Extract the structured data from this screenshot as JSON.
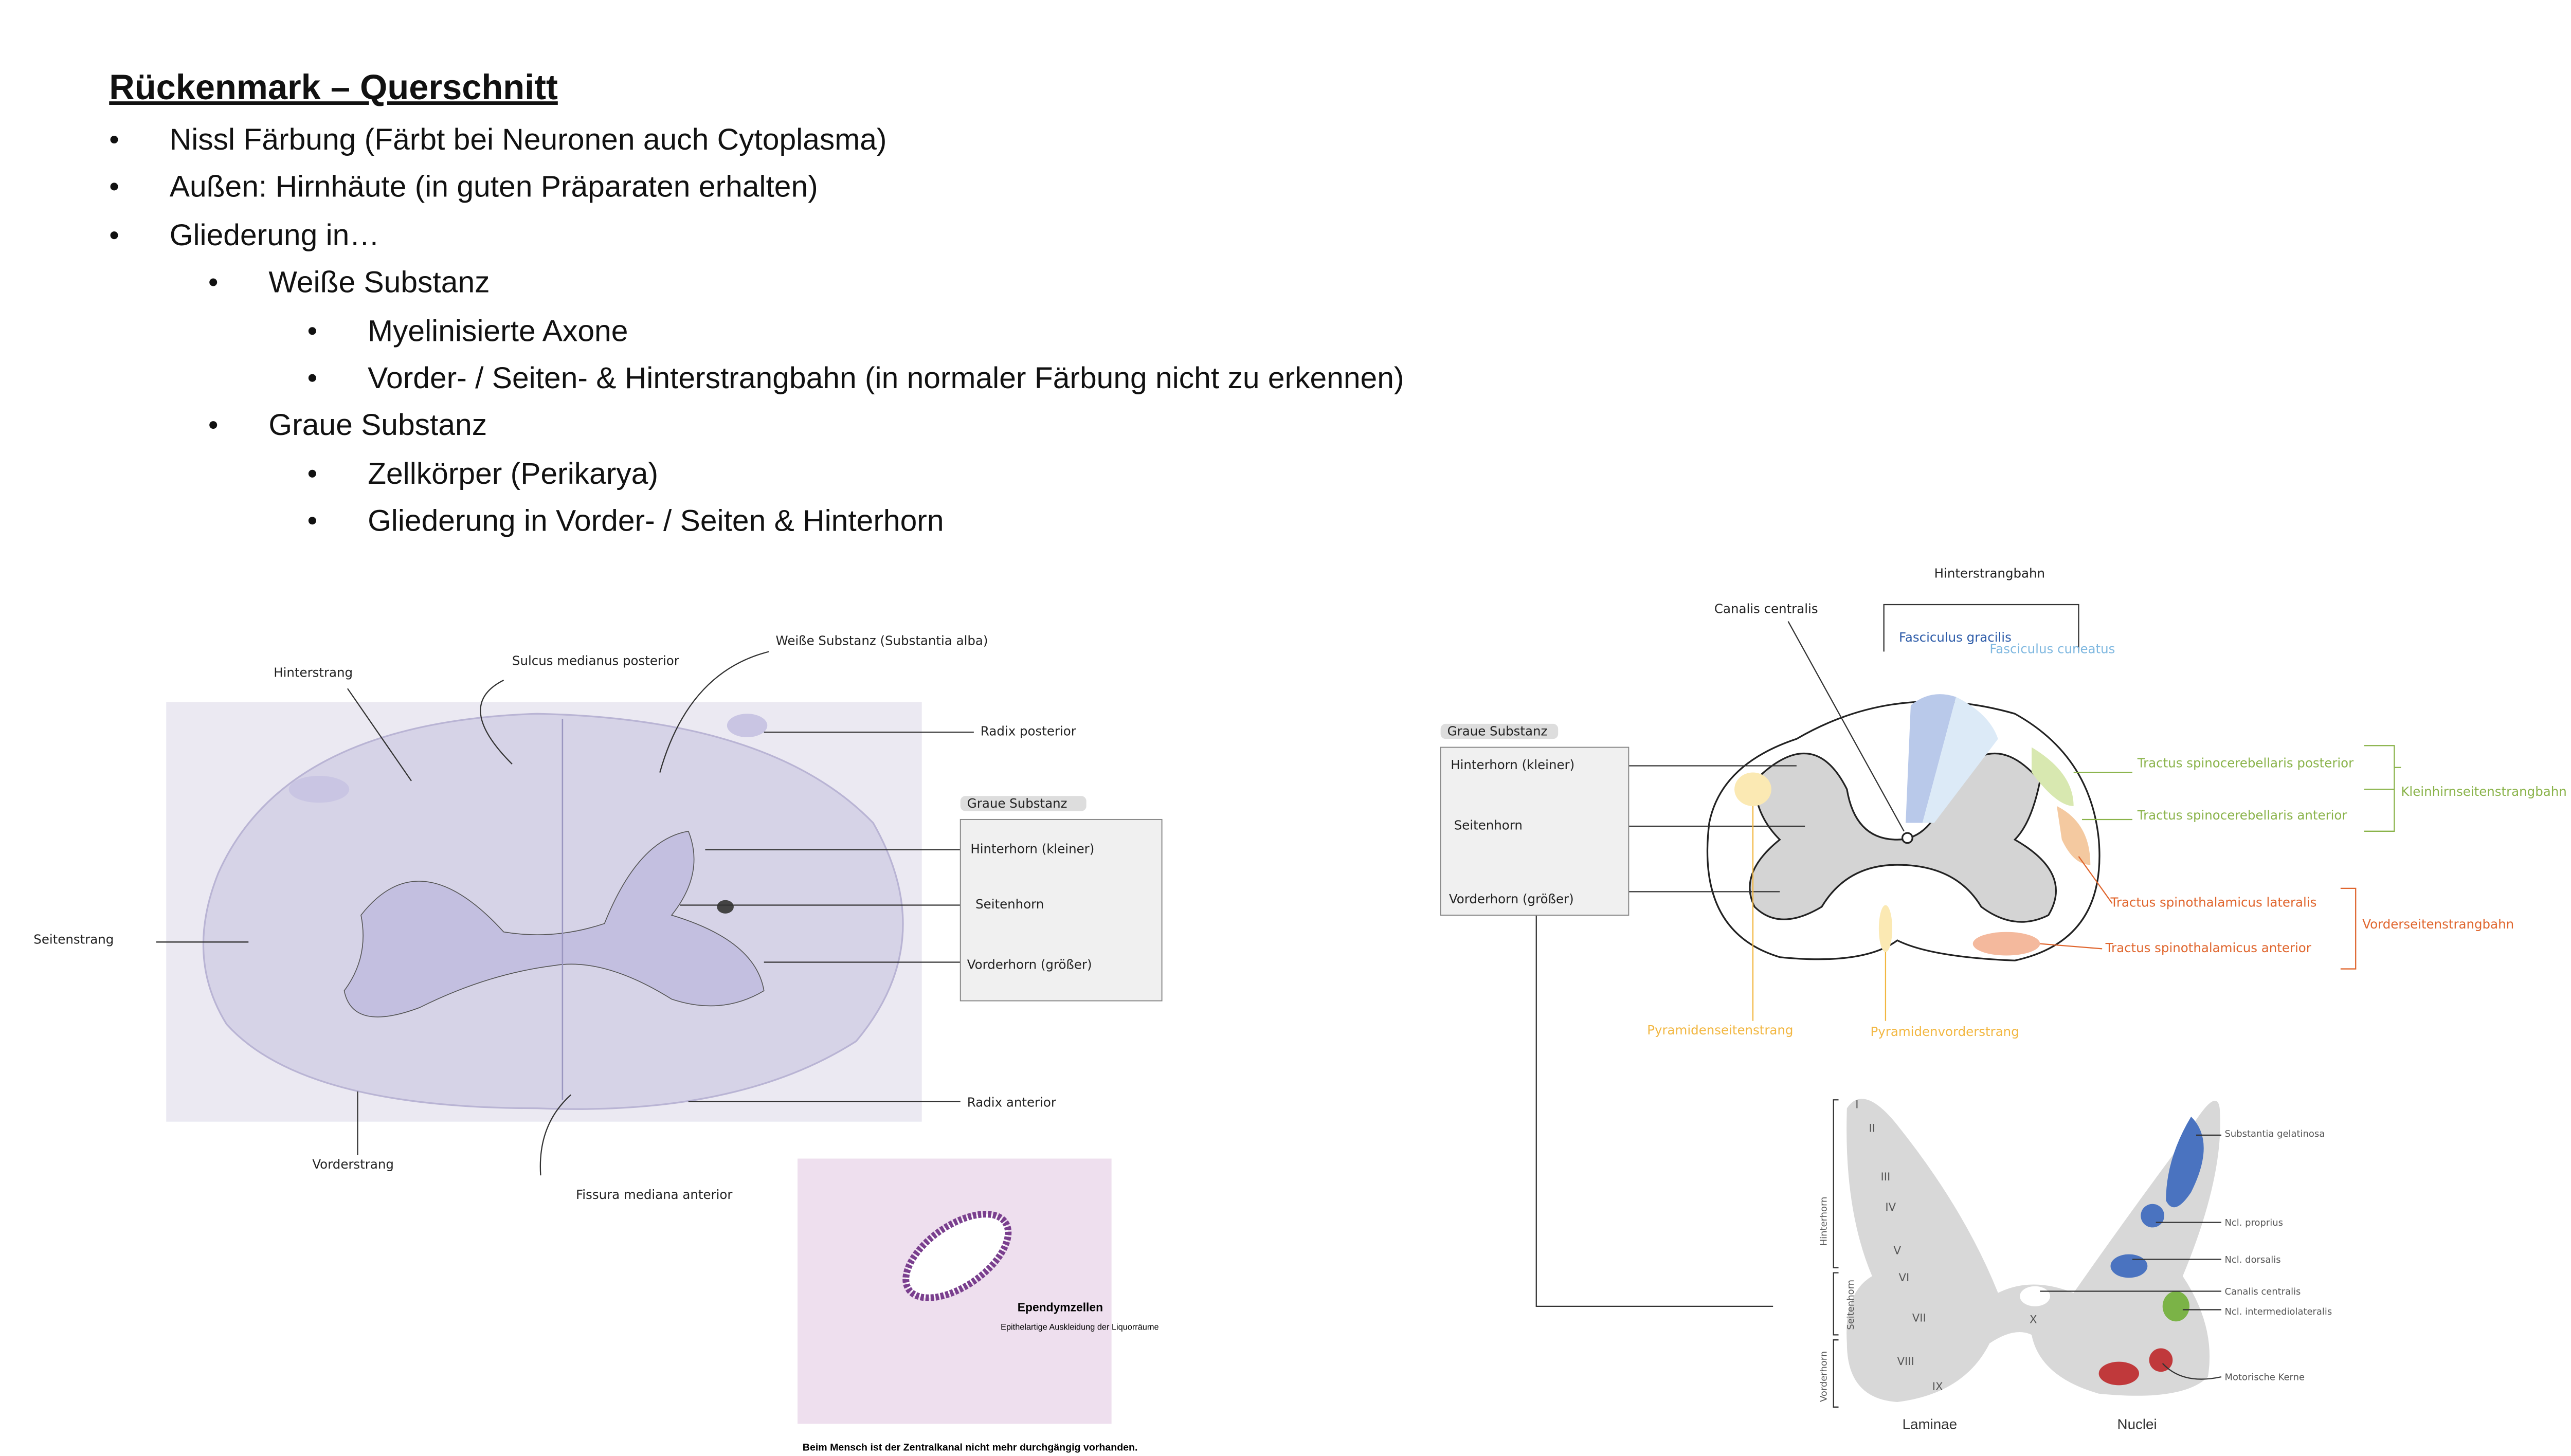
{
  "title": "Rückenmark – Querschnitt",
  "bullets": [
    {
      "text": "Nissl Färbung (Färbt bei Neuronen auch Cytoplasma)"
    },
    {
      "text": "Außen: Hirnhäute (in guten Präparaten erhalten)"
    },
    {
      "text": "Gliederung in…",
      "items": [
        {
          "text": "Weiße Substanz",
          "items": [
            "Myelinisierte Axone",
            "Vorder- / Seiten- & Hinterstrangbahn (in normaler Färbung nicht zu erkennen)"
          ]
        },
        {
          "text": "Graue Substanz",
          "items": [
            "Zellkörper (Perikarya)",
            "Gliederung in Vorder- / Seiten & Hinterhorn"
          ]
        }
      ]
    }
  ],
  "histology": {
    "labels": {
      "hinterstrang": "Hinterstrang",
      "sulcus": "Sulcus medianus posterior",
      "weisse": "Weiße Substanz (Substantia alba)",
      "radix_posterior": "Radix posterior",
      "graue": "Graue Substanz",
      "hinterhorn": "Hinterhorn (kleiner)",
      "seitenhorn": "Seitenhorn",
      "vorderhorn": "Vorderhorn (größer)",
      "seitenstrang": "Seitenstrang",
      "radix_anterior": "Radix anterior",
      "vorderstrang": "Vorderstrang",
      "fissura": "Fissura mediana anterior"
    }
  },
  "ependyma": {
    "label": "Ependymzellen",
    "sublabel": "Epithelartige Auskleidung der Liquorräume",
    "caption": "Beim Mensch ist der Zentralkanal nicht mehr durchgängig vorhanden."
  },
  "schema": {
    "labels": {
      "hinterstrangbahn": "Hinterstrangbahn",
      "canalis": "Canalis centralis",
      "gracilis": "Fasciculus gracilis",
      "cuneatus": "Fasciculus cuneatus",
      "graue": "Graue Substanz",
      "hinterhorn": "Hinterhorn (kleiner)",
      "seitenhorn": "Seitenhorn",
      "vorderhorn": "Vorderhorn (größer)",
      "tsc_post": "Tractus spinocerebellaris posterior",
      "tsc_ant": "Tractus spinocerebellaris anterior",
      "kleinhirn": "Kleinhirnseitenstrangbahn",
      "tst_lat": "Tractus spinothalamicus lateralis",
      "tst_ant": "Tractus spinothalamicus anterior",
      "vorderseiten": "Vorderseitenstrangbahn",
      "pyr_seiten": "Pyramidenseitenstrang",
      "pyr_vorder": "Pyramidenvorderstrang"
    }
  },
  "laminae": {
    "numerals": [
      "I",
      "II",
      "III",
      "IV",
      "V",
      "VI",
      "VII",
      "VIII",
      "IX",
      "X"
    ],
    "horns": [
      "Hinterhorn",
      "Seitenhorn",
      "Vorderhorn"
    ],
    "nuclei": [
      "Substantia gelatinosa",
      "Ncl. proprius",
      "Ncl. dorsalis",
      "Canalis centralis",
      "Ncl. intermediolateralis",
      "Motorische Kerne"
    ],
    "laminae_label": "Laminae",
    "nuclei_label": "Nuclei"
  }
}
